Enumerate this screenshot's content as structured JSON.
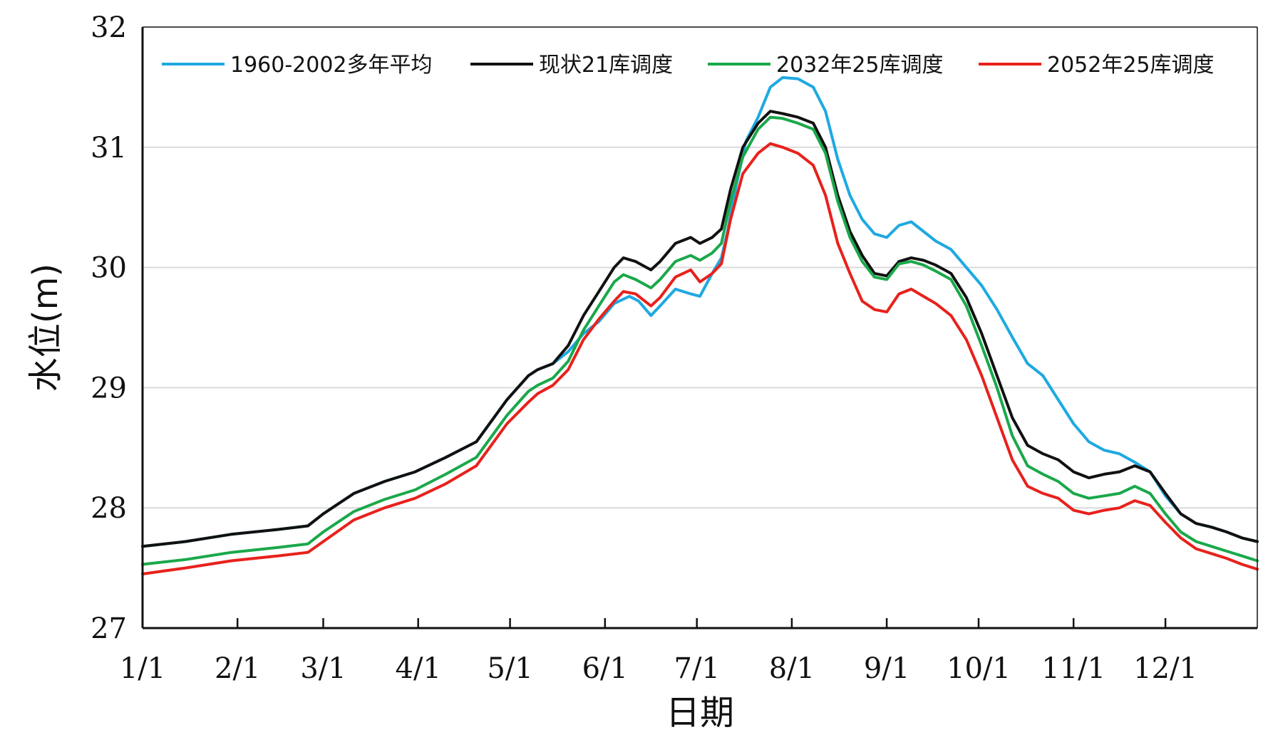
{
  "chart_data": {
    "type": "line",
    "xlabel": "日期",
    "ylabel": "水位(m)",
    "ylim": [
      27,
      32
    ],
    "yticks": [
      "27",
      "28",
      "29",
      "30",
      "31",
      "32"
    ],
    "x_tick_labels": [
      "1/1",
      "2/1",
      "3/1",
      "4/1",
      "5/1",
      "6/1",
      "7/1",
      "8/1",
      "9/1",
      "10/1",
      "11/1",
      "12/1"
    ],
    "x_tick_days": [
      1,
      32,
      60,
      91,
      121,
      152,
      182,
      213,
      244,
      274,
      305,
      335
    ],
    "x_range_days": [
      1,
      365
    ],
    "grid": "horizontal",
    "legend_position": "top",
    "series": [
      {
        "name": "1960-2002多年平均",
        "color": "#1ea9e1",
        "points": [
          [
            1,
            27.68
          ],
          [
            15,
            27.72
          ],
          [
            30,
            27.78
          ],
          [
            45,
            27.82
          ],
          [
            55,
            27.85
          ],
          [
            60,
            27.95
          ],
          [
            70,
            28.12
          ],
          [
            80,
            28.22
          ],
          [
            90,
            28.3
          ],
          [
            100,
            28.42
          ],
          [
            110,
            28.55
          ],
          [
            120,
            28.9
          ],
          [
            127,
            29.1
          ],
          [
            130,
            29.15
          ],
          [
            135,
            29.2
          ],
          [
            140,
            29.3
          ],
          [
            145,
            29.45
          ],
          [
            150,
            29.55
          ],
          [
            155,
            29.7
          ],
          [
            160,
            29.76
          ],
          [
            163,
            29.72
          ],
          [
            167,
            29.6
          ],
          [
            170,
            29.68
          ],
          [
            175,
            29.82
          ],
          [
            180,
            29.78
          ],
          [
            183,
            29.76
          ],
          [
            187,
            29.95
          ],
          [
            190,
            30.08
          ],
          [
            192,
            30.3
          ],
          [
            195,
            30.7
          ],
          [
            198,
            31.05
          ],
          [
            202,
            31.25
          ],
          [
            206,
            31.5
          ],
          [
            210,
            31.58
          ],
          [
            215,
            31.57
          ],
          [
            220,
            31.5
          ],
          [
            224,
            31.3
          ],
          [
            228,
            30.9
          ],
          [
            232,
            30.6
          ],
          [
            236,
            30.4
          ],
          [
            240,
            30.28
          ],
          [
            244,
            30.25
          ],
          [
            248,
            30.35
          ],
          [
            252,
            30.38
          ],
          [
            256,
            30.3
          ],
          [
            260,
            30.22
          ],
          [
            265,
            30.15
          ],
          [
            270,
            30.0
          ],
          [
            275,
            29.85
          ],
          [
            280,
            29.65
          ],
          [
            285,
            29.42
          ],
          [
            290,
            29.2
          ],
          [
            295,
            29.1
          ],
          [
            300,
            28.9
          ],
          [
            305,
            28.7
          ],
          [
            310,
            28.55
          ],
          [
            315,
            28.48
          ],
          [
            320,
            28.45
          ],
          [
            325,
            28.38
          ],
          [
            330,
            28.3
          ],
          [
            335,
            28.1
          ],
          [
            340,
            27.95
          ],
          [
            345,
            27.87
          ],
          [
            350,
            27.84
          ],
          [
            355,
            27.8
          ],
          [
            360,
            27.75
          ],
          [
            365,
            27.72
          ]
        ]
      },
      {
        "name": "现状21库调度",
        "color": "#111111",
        "points": [
          [
            1,
            27.68
          ],
          [
            15,
            27.72
          ],
          [
            30,
            27.78
          ],
          [
            45,
            27.82
          ],
          [
            55,
            27.85
          ],
          [
            60,
            27.95
          ],
          [
            70,
            28.12
          ],
          [
            80,
            28.22
          ],
          [
            90,
            28.3
          ],
          [
            100,
            28.42
          ],
          [
            110,
            28.55
          ],
          [
            120,
            28.9
          ],
          [
            127,
            29.1
          ],
          [
            130,
            29.15
          ],
          [
            135,
            29.2
          ],
          [
            140,
            29.35
          ],
          [
            145,
            29.6
          ],
          [
            150,
            29.8
          ],
          [
            155,
            30.0
          ],
          [
            158,
            30.08
          ],
          [
            162,
            30.05
          ],
          [
            167,
            29.98
          ],
          [
            170,
            30.05
          ],
          [
            175,
            30.2
          ],
          [
            180,
            30.25
          ],
          [
            183,
            30.2
          ],
          [
            187,
            30.25
          ],
          [
            190,
            30.32
          ],
          [
            193,
            30.65
          ],
          [
            197,
            31.0
          ],
          [
            202,
            31.2
          ],
          [
            206,
            31.3
          ],
          [
            210,
            31.28
          ],
          [
            215,
            31.25
          ],
          [
            220,
            31.2
          ],
          [
            224,
            31.0
          ],
          [
            228,
            30.6
          ],
          [
            232,
            30.3
          ],
          [
            236,
            30.1
          ],
          [
            240,
            29.95
          ],
          [
            244,
            29.93
          ],
          [
            248,
            30.05
          ],
          [
            252,
            30.08
          ],
          [
            256,
            30.06
          ],
          [
            260,
            30.02
          ],
          [
            265,
            29.95
          ],
          [
            270,
            29.75
          ],
          [
            275,
            29.45
          ],
          [
            280,
            29.1
          ],
          [
            285,
            28.75
          ],
          [
            290,
            28.52
          ],
          [
            295,
            28.45
          ],
          [
            300,
            28.4
          ],
          [
            305,
            28.3
          ],
          [
            310,
            28.25
          ],
          [
            315,
            28.28
          ],
          [
            320,
            28.3
          ],
          [
            325,
            28.35
          ],
          [
            330,
            28.3
          ],
          [
            335,
            28.12
          ],
          [
            340,
            27.95
          ],
          [
            345,
            27.87
          ],
          [
            350,
            27.84
          ],
          [
            355,
            27.8
          ],
          [
            360,
            27.75
          ],
          [
            365,
            27.72
          ]
        ]
      },
      {
        "name": "2032年25库调度",
        "color": "#1aa84a",
        "points": [
          [
            1,
            27.53
          ],
          [
            15,
            27.57
          ],
          [
            30,
            27.63
          ],
          [
            45,
            27.67
          ],
          [
            55,
            27.7
          ],
          [
            60,
            27.8
          ],
          [
            70,
            27.97
          ],
          [
            80,
            28.07
          ],
          [
            90,
            28.15
          ],
          [
            100,
            28.28
          ],
          [
            110,
            28.42
          ],
          [
            120,
            28.77
          ],
          [
            127,
            28.97
          ],
          [
            130,
            29.02
          ],
          [
            135,
            29.08
          ],
          [
            140,
            29.22
          ],
          [
            145,
            29.48
          ],
          [
            150,
            29.68
          ],
          [
            155,
            29.88
          ],
          [
            158,
            29.94
          ],
          [
            162,
            29.9
          ],
          [
            167,
            29.83
          ],
          [
            170,
            29.9
          ],
          [
            175,
            30.05
          ],
          [
            180,
            30.1
          ],
          [
            183,
            30.06
          ],
          [
            187,
            30.12
          ],
          [
            190,
            30.2
          ],
          [
            193,
            30.55
          ],
          [
            197,
            30.92
          ],
          [
            202,
            31.15
          ],
          [
            206,
            31.25
          ],
          [
            210,
            31.24
          ],
          [
            215,
            31.2
          ],
          [
            220,
            31.15
          ],
          [
            224,
            30.95
          ],
          [
            228,
            30.55
          ],
          [
            232,
            30.25
          ],
          [
            236,
            30.05
          ],
          [
            240,
            29.92
          ],
          [
            244,
            29.9
          ],
          [
            248,
            30.03
          ],
          [
            252,
            30.05
          ],
          [
            256,
            30.02
          ],
          [
            260,
            29.97
          ],
          [
            265,
            29.9
          ],
          [
            270,
            29.68
          ],
          [
            275,
            29.35
          ],
          [
            280,
            29.0
          ],
          [
            285,
            28.6
          ],
          [
            290,
            28.35
          ],
          [
            295,
            28.28
          ],
          [
            300,
            28.22
          ],
          [
            305,
            28.12
          ],
          [
            310,
            28.08
          ],
          [
            315,
            28.1
          ],
          [
            320,
            28.12
          ],
          [
            325,
            28.18
          ],
          [
            330,
            28.12
          ],
          [
            335,
            27.95
          ],
          [
            340,
            27.8
          ],
          [
            345,
            27.72
          ],
          [
            350,
            27.68
          ],
          [
            355,
            27.64
          ],
          [
            360,
            27.6
          ],
          [
            365,
            27.56
          ]
        ]
      },
      {
        "name": "2052年25库调度",
        "color": "#e8211c",
        "points": [
          [
            1,
            27.45
          ],
          [
            15,
            27.5
          ],
          [
            30,
            27.56
          ],
          [
            45,
            27.6
          ],
          [
            55,
            27.63
          ],
          [
            60,
            27.72
          ],
          [
            70,
            27.9
          ],
          [
            80,
            28.0
          ],
          [
            90,
            28.08
          ],
          [
            100,
            28.2
          ],
          [
            110,
            28.35
          ],
          [
            120,
            28.7
          ],
          [
            127,
            28.88
          ],
          [
            130,
            28.95
          ],
          [
            135,
            29.02
          ],
          [
            140,
            29.15
          ],
          [
            145,
            29.4
          ],
          [
            150,
            29.57
          ],
          [
            155,
            29.72
          ],
          [
            158,
            29.8
          ],
          [
            162,
            29.78
          ],
          [
            167,
            29.68
          ],
          [
            170,
            29.75
          ],
          [
            175,
            29.92
          ],
          [
            180,
            29.98
          ],
          [
            183,
            29.88
          ],
          [
            187,
            29.95
          ],
          [
            190,
            30.03
          ],
          [
            193,
            30.4
          ],
          [
            197,
            30.78
          ],
          [
            202,
            30.95
          ],
          [
            206,
            31.03
          ],
          [
            210,
            31.0
          ],
          [
            215,
            30.95
          ],
          [
            220,
            30.85
          ],
          [
            224,
            30.6
          ],
          [
            228,
            30.2
          ],
          [
            232,
            29.95
          ],
          [
            236,
            29.72
          ],
          [
            240,
            29.65
          ],
          [
            244,
            29.63
          ],
          [
            248,
            29.78
          ],
          [
            252,
            29.82
          ],
          [
            256,
            29.76
          ],
          [
            260,
            29.7
          ],
          [
            265,
            29.6
          ],
          [
            270,
            29.4
          ],
          [
            275,
            29.1
          ],
          [
            280,
            28.75
          ],
          [
            285,
            28.4
          ],
          [
            290,
            28.18
          ],
          [
            295,
            28.12
          ],
          [
            300,
            28.08
          ],
          [
            305,
            27.98
          ],
          [
            310,
            27.95
          ],
          [
            315,
            27.98
          ],
          [
            320,
            28.0
          ],
          [
            325,
            28.06
          ],
          [
            330,
            28.02
          ],
          [
            335,
            27.88
          ],
          [
            340,
            27.75
          ],
          [
            345,
            27.66
          ],
          [
            350,
            27.62
          ],
          [
            355,
            27.58
          ],
          [
            360,
            27.53
          ],
          [
            365,
            27.49
          ]
        ]
      }
    ]
  }
}
